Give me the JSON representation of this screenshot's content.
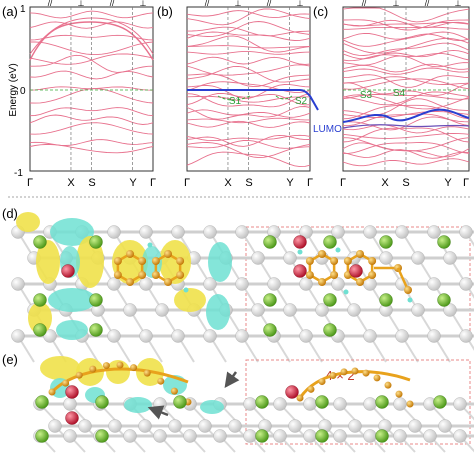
{
  "panels": {
    "a": {
      "label": "(a)",
      "ylabel": "Energy (eV)",
      "ytick_top": "1",
      "ytick_mid": "0",
      "ytick_bottom": "-1",
      "kpoints": [
        "Γ",
        "X",
        "S",
        "Y",
        "Γ"
      ],
      "top_marks": [
        "//",
        "⊥",
        "//",
        "⊥"
      ]
    },
    "b": {
      "label": "(b)",
      "kpoints": [
        "Γ",
        "X",
        "S",
        "Y",
        "Γ"
      ],
      "top_marks": [
        "//",
        "⊥",
        "//",
        "⊥"
      ],
      "state_labels": [
        "S1",
        "S2"
      ],
      "lumo_label": "LUMO"
    },
    "c": {
      "label": "(c)",
      "kpoints": [
        "Γ",
        "X",
        "S",
        "Y",
        "Γ"
      ],
      "top_marks": [
        "//",
        "⊥",
        "//",
        "⊥"
      ],
      "state_labels": [
        "S3",
        "S4"
      ]
    },
    "d": {
      "label": "(d)"
    },
    "e": {
      "label": "(e)",
      "supercell_label": "4 × 2"
    }
  },
  "colors": {
    "band": "#e8728e",
    "lumo": "#2a3fd1",
    "fermi": "#3aaa3a",
    "state_label": "#2e9e3a",
    "lumo_text": "#2a3fd1",
    "supercell_text": "#c0392b",
    "dashed_box": "#e88a8a",
    "substrate_gray": "#e8e8e8",
    "ag_green": "#7dc43c",
    "o_red": "#d8334a",
    "molecule_orange": "#e8a21c",
    "charge_yellow": "#f0e14a",
    "charge_cyan": "#6fe0d2"
  }
}
